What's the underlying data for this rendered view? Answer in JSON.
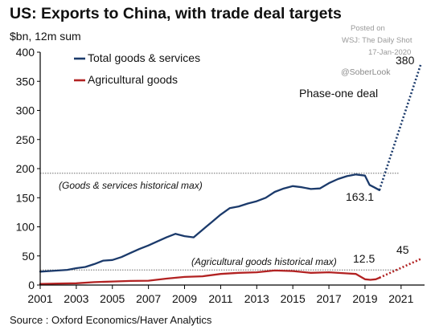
{
  "title": "US: Exports to China, with trade deal targets",
  "unit_label": "$bn, 12m sum",
  "source": "Source : Oxford Economics/Haver Analytics",
  "watermark": {
    "posted": "Posted on",
    "outlet": "WSJ: The Daily Shot",
    "date": "17-Jan-2020",
    "handle": "@SoberLook"
  },
  "colors": {
    "total": "#1b3a6b",
    "agri": "#b22222",
    "reference": "#555555"
  },
  "chart_data": {
    "type": "line",
    "title": "US: Exports to China, with trade deal targets",
    "ylabel": "$bn, 12m sum",
    "xlim": [
      2001,
      2022.3
    ],
    "ylim": [
      0,
      400
    ],
    "x_ticks": [
      "2001",
      "2003",
      "2005",
      "2007",
      "2009",
      "2011",
      "2013",
      "2015",
      "2017",
      "2019",
      "2021"
    ],
    "y_ticks": [
      "0",
      "50",
      "100",
      "150",
      "200",
      "250",
      "300",
      "350",
      "400"
    ],
    "legend": [
      "Total goods & services",
      "Agricultural goods"
    ],
    "legend_position": "top-left",
    "series": [
      {
        "name": "Total goods & services",
        "x": [
          2001,
          2001.5,
          2002,
          2002.5,
          2003,
          2003.5,
          2004,
          2004.5,
          2005,
          2005.5,
          2006,
          2006.5,
          2007,
          2007.5,
          2008,
          2008.5,
          2009,
          2009.5,
          2010,
          2010.5,
          2011,
          2011.5,
          2012,
          2012.5,
          2013,
          2013.5,
          2014,
          2014.5,
          2015,
          2015.5,
          2016,
          2016.5,
          2017,
          2017.5,
          2018,
          2018.5,
          2019,
          2019.25,
          2019.5,
          2019.8
        ],
        "y": [
          23,
          24,
          25,
          26,
          29,
          31,
          36,
          42,
          43,
          48,
          55,
          62,
          68,
          75,
          82,
          88,
          84,
          82,
          95,
          108,
          121,
          132,
          135,
          140,
          144,
          150,
          160,
          166,
          170,
          168,
          165,
          166,
          175,
          182,
          187,
          190,
          188,
          172,
          168,
          163.1
        ]
      },
      {
        "name": "Agricultural goods",
        "x": [
          2001,
          2002,
          2003,
          2004,
          2005,
          2006,
          2007,
          2008,
          2009,
          2010,
          2011,
          2012,
          2013,
          2014,
          2015,
          2016,
          2017,
          2018,
          2018.5,
          2019,
          2019.3,
          2019.6,
          2019.8
        ],
        "y": [
          2,
          2.5,
          3,
          5,
          6,
          7,
          7.5,
          11,
          14,
          15,
          19,
          21,
          22,
          25,
          24,
          21,
          22,
          20,
          19,
          10,
          9,
          10,
          12.5
        ]
      }
    ],
    "targets": [
      {
        "series": "Total goods & services",
        "from_x": 2019.8,
        "from_y": 163.1,
        "to_x": 2022.1,
        "to_y": 380
      },
      {
        "series": "Agricultural goods",
        "from_x": 2019.8,
        "from_y": 12.5,
        "to_x": 2022.1,
        "to_y": 45
      }
    ],
    "reference_lines": [
      {
        "y": 192,
        "label": "(Goods & services historical max)"
      },
      {
        "y": 26,
        "label": "(Agricultural goods historical max)"
      }
    ],
    "annotations": [
      {
        "text": "Phase-one deal"
      },
      {
        "text": "163.1",
        "x": 2019.8,
        "y": 163.1
      },
      {
        "text": "380",
        "x": 2022.1,
        "y": 380
      },
      {
        "text": "12.5",
        "x": 2019.8,
        "y": 12.5
      },
      {
        "text": "45",
        "x": 2022.1,
        "y": 45
      }
    ]
  }
}
